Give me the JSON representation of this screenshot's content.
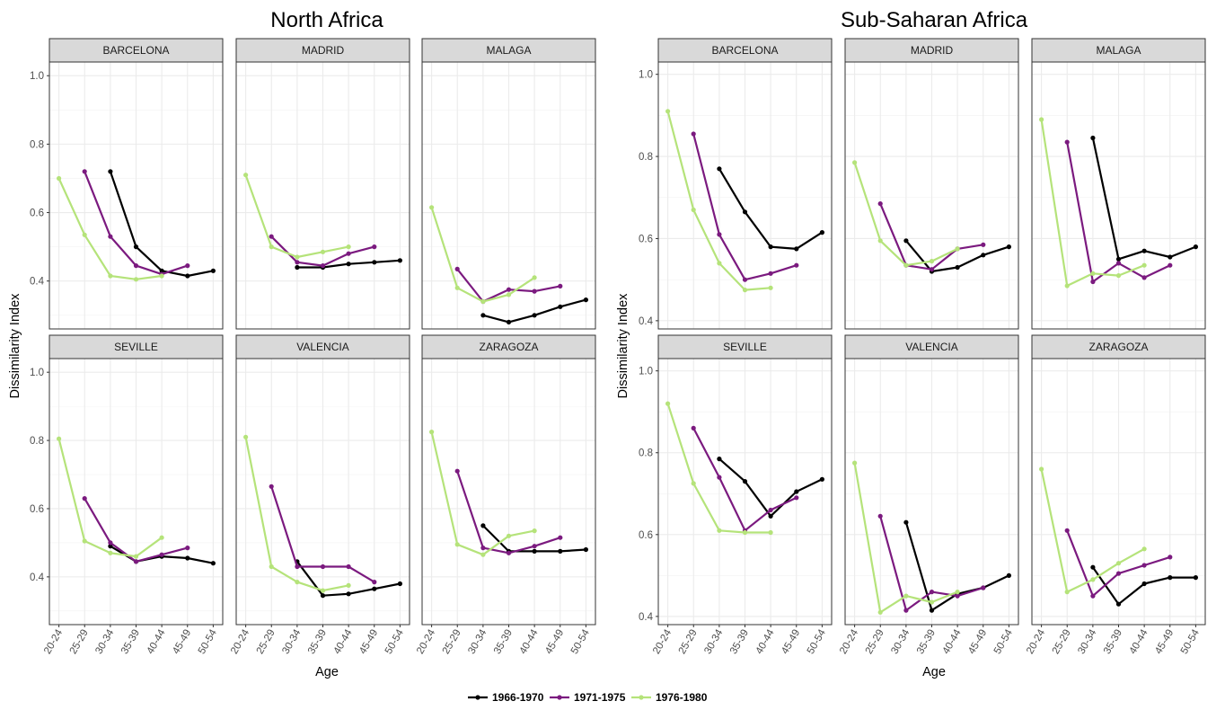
{
  "chart_data": [
    {
      "type": "line",
      "title": "North Africa",
      "xlabel": "Age",
      "ylabel": "Dissimilarity Index",
      "categories": [
        "20-24",
        "25-29",
        "30-34",
        "35-39",
        "40-44",
        "45-49",
        "50-54"
      ],
      "yticks": [
        0.4,
        0.6,
        0.8,
        1.0
      ],
      "ylim": [
        0.26,
        1.04
      ],
      "grid": true,
      "panels": [
        {
          "name": "BARCELONA",
          "series": [
            {
              "name": "1966-1970",
              "values": [
                null,
                null,
                0.72,
                0.5,
                0.43,
                0.415,
                0.43
              ]
            },
            {
              "name": "1971-1975",
              "values": [
                null,
                0.72,
                0.53,
                0.445,
                0.42,
                0.445,
                null
              ]
            },
            {
              "name": "1976-1980",
              "values": [
                0.7,
                0.535,
                0.415,
                0.405,
                0.415,
                null,
                null
              ]
            }
          ]
        },
        {
          "name": "MADRID",
          "series": [
            {
              "name": "1966-1970",
              "values": [
                null,
                null,
                0.44,
                0.44,
                0.45,
                0.455,
                0.46
              ]
            },
            {
              "name": "1971-1975",
              "values": [
                null,
                0.53,
                0.455,
                0.445,
                0.48,
                0.5,
                null
              ]
            },
            {
              "name": "1976-1980",
              "values": [
                0.71,
                0.5,
                0.47,
                0.485,
                0.5,
                null,
                null
              ]
            }
          ]
        },
        {
          "name": "MALAGA",
          "series": [
            {
              "name": "1966-1970",
              "values": [
                null,
                null,
                0.3,
                0.28,
                0.3,
                0.325,
                0.345
              ]
            },
            {
              "name": "1971-1975",
              "values": [
                null,
                0.435,
                0.34,
                0.375,
                0.37,
                0.385,
                null
              ]
            },
            {
              "name": "1976-1980",
              "values": [
                0.615,
                0.38,
                0.34,
                0.36,
                0.41,
                null,
                null
              ]
            }
          ]
        },
        {
          "name": "SEVILLE",
          "series": [
            {
              "name": "1966-1970",
              "values": [
                null,
                null,
                0.49,
                0.445,
                0.46,
                0.455,
                0.44
              ]
            },
            {
              "name": "1971-1975",
              "values": [
                null,
                0.63,
                0.5,
                0.445,
                0.465,
                0.485,
                null
              ]
            },
            {
              "name": "1976-1980",
              "values": [
                0.805,
                0.505,
                0.47,
                0.46,
                0.515,
                null,
                null
              ]
            }
          ]
        },
        {
          "name": "VALENCIA",
          "series": [
            {
              "name": "1966-1970",
              "values": [
                null,
                null,
                0.445,
                0.345,
                0.35,
                0.365,
                0.38
              ]
            },
            {
              "name": "1971-1975",
              "values": [
                null,
                0.665,
                0.43,
                0.43,
                0.43,
                0.385,
                null
              ]
            },
            {
              "name": "1976-1980",
              "values": [
                0.81,
                0.43,
                0.385,
                0.36,
                0.375,
                null,
                null
              ]
            }
          ]
        },
        {
          "name": "ZARAGOZA",
          "series": [
            {
              "name": "1966-1970",
              "values": [
                null,
                null,
                0.55,
                0.475,
                0.475,
                0.475,
                0.48
              ]
            },
            {
              "name": "1971-1975",
              "values": [
                null,
                0.71,
                0.485,
                0.47,
                0.49,
                0.515,
                null
              ]
            },
            {
              "name": "1976-1980",
              "values": [
                0.825,
                0.495,
                0.465,
                0.52,
                0.535,
                null,
                null
              ]
            }
          ]
        }
      ]
    },
    {
      "type": "line",
      "title": "Sub-Saharan Africa",
      "xlabel": "Age",
      "ylabel": "Dissimilarity Index",
      "categories": [
        "20-24",
        "25-29",
        "30-34",
        "35-39",
        "40-44",
        "45-49",
        "50-54"
      ],
      "yticks": [
        0.4,
        0.6,
        0.8,
        1.0
      ],
      "ylim": [
        0.38,
        1.03
      ],
      "grid": true,
      "panels": [
        {
          "name": "BARCELONA",
          "series": [
            {
              "name": "1966-1970",
              "values": [
                null,
                null,
                0.77,
                0.665,
                0.58,
                0.575,
                0.615
              ]
            },
            {
              "name": "1971-1975",
              "values": [
                null,
                0.855,
                0.61,
                0.5,
                0.515,
                0.535,
                null
              ]
            },
            {
              "name": "1976-1980",
              "values": [
                0.91,
                0.67,
                0.54,
                0.475,
                0.48,
                null,
                null
              ]
            }
          ]
        },
        {
          "name": "MADRID",
          "series": [
            {
              "name": "1966-1970",
              "values": [
                null,
                null,
                0.595,
                0.52,
                0.53,
                0.56,
                0.58
              ]
            },
            {
              "name": "1971-1975",
              "values": [
                null,
                0.685,
                0.535,
                0.525,
                0.575,
                0.585,
                null
              ]
            },
            {
              "name": "1976-1980",
              "values": [
                0.785,
                0.595,
                0.535,
                0.545,
                0.575,
                null,
                null
              ]
            }
          ]
        },
        {
          "name": "MALAGA",
          "series": [
            {
              "name": "1966-1970",
              "values": [
                null,
                null,
                0.845,
                0.55,
                0.57,
                0.555,
                0.58
              ]
            },
            {
              "name": "1971-1975",
              "values": [
                null,
                0.835,
                0.495,
                0.54,
                0.505,
                0.535,
                null
              ]
            },
            {
              "name": "1976-1980",
              "values": [
                0.89,
                0.485,
                0.515,
                0.51,
                0.535,
                null,
                null
              ]
            }
          ]
        },
        {
          "name": "SEVILLE",
          "series": [
            {
              "name": "1966-1970",
              "values": [
                null,
                null,
                0.785,
                0.73,
                0.645,
                0.705,
                0.735
              ]
            },
            {
              "name": "1971-1975",
              "values": [
                null,
                0.86,
                0.74,
                0.61,
                0.66,
                0.69,
                null
              ]
            },
            {
              "name": "1976-1980",
              "values": [
                0.92,
                0.725,
                0.61,
                0.605,
                0.605,
                null,
                null
              ]
            }
          ]
        },
        {
          "name": "VALENCIA",
          "series": [
            {
              "name": "1966-1970",
              "values": [
                null,
                null,
                0.63,
                0.415,
                0.455,
                0.47,
                0.5
              ]
            },
            {
              "name": "1971-1975",
              "values": [
                null,
                0.645,
                0.415,
                0.46,
                0.45,
                0.47,
                null
              ]
            },
            {
              "name": "1976-1980",
              "values": [
                0.775,
                0.41,
                0.45,
                0.435,
                0.46,
                null,
                null
              ]
            }
          ]
        },
        {
          "name": "ZARAGOZA",
          "series": [
            {
              "name": "1966-1970",
              "values": [
                null,
                null,
                0.52,
                0.43,
                0.48,
                0.495,
                0.495
              ]
            },
            {
              "name": "1971-1975",
              "values": [
                null,
                0.61,
                0.45,
                0.505,
                0.525,
                0.545,
                null
              ]
            },
            {
              "name": "1976-1980",
              "values": [
                0.76,
                0.46,
                0.49,
                0.53,
                0.565,
                null,
                null
              ]
            }
          ]
        }
      ]
    }
  ],
  "legend": {
    "placement": "bottom",
    "items": [
      {
        "name": "1966-1970",
        "color": "#000000"
      },
      {
        "name": "1971-1975",
        "color": "#7B1A7F"
      },
      {
        "name": "1976-1980",
        "color": "#B5E37A"
      }
    ]
  }
}
